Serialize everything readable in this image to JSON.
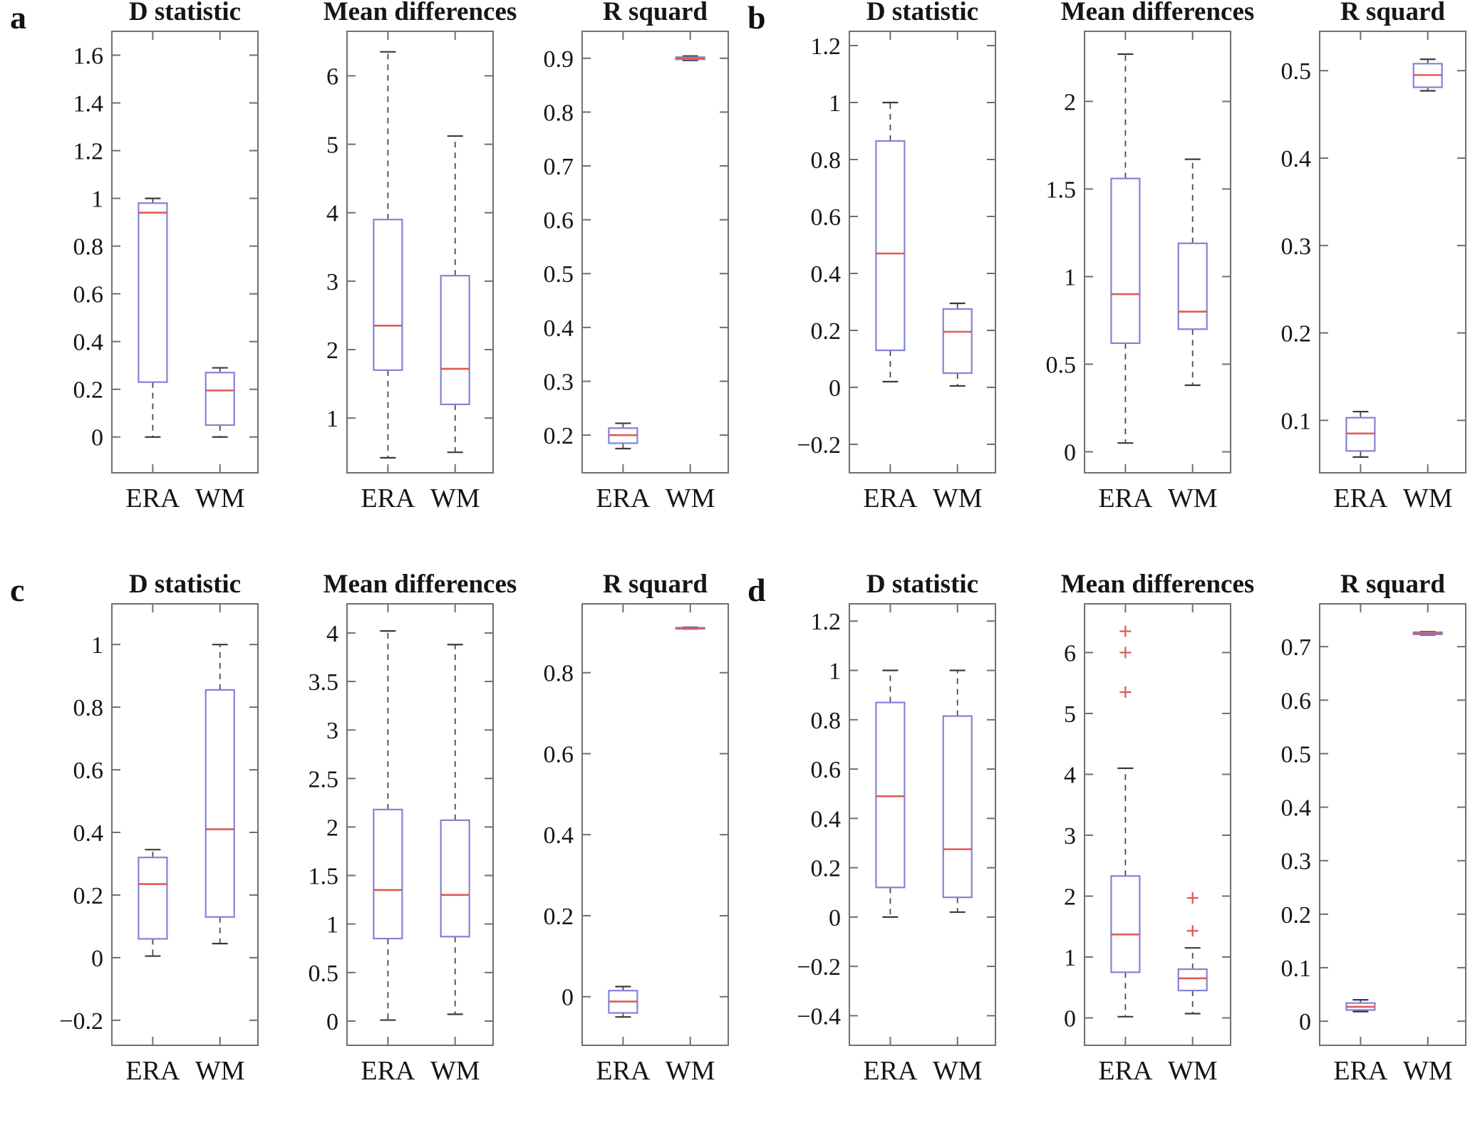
{
  "figure": {
    "background": "#ffffff"
  },
  "colors": {
    "box": "#8282d8",
    "median": "#e05a52",
    "whisker": "#4a4a4a",
    "cap": "#3a3a3a",
    "axis": "#6f6f6f",
    "outlier": "#e0564e",
    "text": "#151515"
  },
  "chart_data": [
    {
      "panel": "a",
      "type": "box",
      "subplots": [
        {
          "title": "D statistic",
          "ylim": [
            -0.15,
            1.7
          ],
          "yticks": [
            0,
            0.2,
            0.4,
            0.6,
            0.8,
            1,
            1.2,
            1.4,
            1.6
          ],
          "ytick_labels": [
            "0",
            "0.2",
            "0.4",
            "0.6",
            "0.8",
            "1",
            "1.2",
            "1.4",
            "1.6"
          ],
          "categories": [
            "ERA",
            "WM"
          ],
          "series": [
            {
              "name": "ERA",
              "whisker_low": 0.0,
              "q1": 0.23,
              "median": 0.94,
              "q3": 0.98,
              "whisker_high": 1.0,
              "outliers": []
            },
            {
              "name": "WM",
              "whisker_low": 0.0,
              "q1": 0.05,
              "median": 0.195,
              "q3": 0.27,
              "whisker_high": 0.29,
              "outliers": []
            }
          ]
        },
        {
          "title": "Mean differences",
          "ylim": [
            0.2,
            6.65
          ],
          "yticks": [
            1,
            2,
            3,
            4,
            5,
            6
          ],
          "ytick_labels": [
            "1",
            "2",
            "3",
            "4",
            "5",
            "6"
          ],
          "categories": [
            "ERA",
            "WM"
          ],
          "series": [
            {
              "name": "ERA",
              "whisker_low": 0.42,
              "q1": 1.7,
              "median": 2.35,
              "q3": 3.9,
              "whisker_high": 6.35,
              "outliers": []
            },
            {
              "name": "WM",
              "whisker_low": 0.5,
              "q1": 1.2,
              "median": 1.72,
              "q3": 3.08,
              "whisker_high": 5.12,
              "outliers": []
            }
          ]
        },
        {
          "title": "R squard",
          "ylim": [
            0.13,
            0.95
          ],
          "yticks": [
            0.2,
            0.3,
            0.4,
            0.5,
            0.6,
            0.7,
            0.8,
            0.9
          ],
          "ytick_labels": [
            "0.2",
            "0.3",
            "0.4",
            "0.5",
            "0.6",
            "0.7",
            "0.8",
            "0.9"
          ],
          "categories": [
            "ERA",
            "WM"
          ],
          "series": [
            {
              "name": "ERA",
              "whisker_low": 0.175,
              "q1": 0.185,
              "median": 0.2,
              "q3": 0.213,
              "whisker_high": 0.222,
              "outliers": []
            },
            {
              "name": "WM",
              "whisker_low": 0.896,
              "q1": 0.898,
              "median": 0.9,
              "q3": 0.902,
              "whisker_high": 0.904,
              "outliers": []
            }
          ]
        }
      ]
    },
    {
      "panel": "b",
      "type": "box",
      "subplots": [
        {
          "title": "D statistic",
          "ylim": [
            -0.3,
            1.25
          ],
          "yticks": [
            -0.2,
            0,
            0.2,
            0.4,
            0.6,
            0.8,
            1,
            1.2
          ],
          "ytick_labels": [
            "−0.2",
            "0",
            "0.2",
            "0.4",
            "0.6",
            "0.8",
            "1",
            "1.2"
          ],
          "categories": [
            "ERA",
            "WM"
          ],
          "series": [
            {
              "name": "ERA",
              "whisker_low": 0.02,
              "q1": 0.13,
              "median": 0.47,
              "q3": 0.865,
              "whisker_high": 1.0,
              "outliers": []
            },
            {
              "name": "WM",
              "whisker_low": 0.005,
              "q1": 0.05,
              "median": 0.195,
              "q3": 0.275,
              "whisker_high": 0.295,
              "outliers": []
            }
          ]
        },
        {
          "title": "Mean differences",
          "ylim": [
            -0.12,
            2.4
          ],
          "yticks": [
            0,
            0.5,
            1,
            1.5,
            2
          ],
          "ytick_labels": [
            "0",
            "0.5",
            "1",
            "1.5",
            "2"
          ],
          "categories": [
            "ERA",
            "WM"
          ],
          "series": [
            {
              "name": "ERA",
              "whisker_low": 0.05,
              "q1": 0.62,
              "median": 0.9,
              "q3": 1.56,
              "whisker_high": 2.27,
              "outliers": []
            },
            {
              "name": "WM",
              "whisker_low": 0.38,
              "q1": 0.7,
              "median": 0.8,
              "q3": 1.19,
              "whisker_high": 1.67,
              "outliers": []
            }
          ]
        },
        {
          "title": "R squard",
          "ylim": [
            0.04,
            0.545
          ],
          "yticks": [
            0.1,
            0.2,
            0.3,
            0.4,
            0.5
          ],
          "ytick_labels": [
            "0.1",
            "0.2",
            "0.3",
            "0.4",
            "0.5"
          ],
          "categories": [
            "ERA",
            "WM"
          ],
          "series": [
            {
              "name": "ERA",
              "whisker_low": 0.058,
              "q1": 0.065,
              "median": 0.085,
              "q3": 0.103,
              "whisker_high": 0.11,
              "outliers": []
            },
            {
              "name": "WM",
              "whisker_low": 0.477,
              "q1": 0.481,
              "median": 0.495,
              "q3": 0.508,
              "whisker_high": 0.513,
              "outliers": []
            }
          ]
        }
      ]
    },
    {
      "panel": "c",
      "type": "box",
      "subplots": [
        {
          "title": "D statistic",
          "ylim": [
            -0.28,
            1.13
          ],
          "yticks": [
            -0.2,
            0,
            0.2,
            0.4,
            0.6,
            0.8,
            1
          ],
          "ytick_labels": [
            "−0.2",
            "0",
            "0.2",
            "0.4",
            "0.6",
            "0.8",
            "1"
          ],
          "categories": [
            "ERA",
            "WM"
          ],
          "series": [
            {
              "name": "ERA",
              "whisker_low": 0.005,
              "q1": 0.06,
              "median": 0.235,
              "q3": 0.32,
              "whisker_high": 0.345,
              "outliers": []
            },
            {
              "name": "WM",
              "whisker_low": 0.045,
              "q1": 0.13,
              "median": 0.41,
              "q3": 0.855,
              "whisker_high": 1.0,
              "outliers": []
            }
          ]
        },
        {
          "title": "Mean differences",
          "ylim": [
            -0.25,
            4.3
          ],
          "yticks": [
            0,
            0.5,
            1,
            1.5,
            2,
            2.5,
            3,
            3.5,
            4
          ],
          "ytick_labels": [
            "0",
            "0.5",
            "1",
            "1.5",
            "2",
            "2.5",
            "3",
            "3.5",
            "4"
          ],
          "categories": [
            "ERA",
            "WM"
          ],
          "series": [
            {
              "name": "ERA",
              "whisker_low": 0.01,
              "q1": 0.85,
              "median": 1.35,
              "q3": 2.18,
              "whisker_high": 4.02,
              "outliers": []
            },
            {
              "name": "WM",
              "whisker_low": 0.07,
              "q1": 0.87,
              "median": 1.3,
              "q3": 2.07,
              "whisker_high": 3.88,
              "outliers": []
            }
          ]
        },
        {
          "title": "R squard",
          "ylim": [
            -0.12,
            0.97
          ],
          "yticks": [
            0,
            0.2,
            0.4,
            0.6,
            0.8
          ],
          "ytick_labels": [
            "0",
            "0.2",
            "0.4",
            "0.6",
            "0.8"
          ],
          "categories": [
            "ERA",
            "WM"
          ],
          "series": [
            {
              "name": "ERA",
              "whisker_low": -0.05,
              "q1": -0.04,
              "median": -0.012,
              "q3": 0.015,
              "whisker_high": 0.025,
              "outliers": []
            },
            {
              "name": "WM",
              "whisker_low": 0.908,
              "q1": 0.909,
              "median": 0.91,
              "q3": 0.911,
              "whisker_high": 0.912,
              "outliers": []
            }
          ]
        }
      ]
    },
    {
      "panel": "d",
      "type": "box",
      "subplots": [
        {
          "title": "D statistic",
          "ylim": [
            -0.52,
            1.27
          ],
          "yticks": [
            -0.4,
            -0.2,
            0,
            0.2,
            0.4,
            0.6,
            0.8,
            1,
            1.2
          ],
          "ytick_labels": [
            "−0.4",
            "−0.2",
            "0",
            "0.2",
            "0.4",
            "0.6",
            "0.8",
            "1",
            "1.2"
          ],
          "categories": [
            "ERA",
            "WM"
          ],
          "series": [
            {
              "name": "ERA",
              "whisker_low": 0.0,
              "q1": 0.12,
              "median": 0.49,
              "q3": 0.87,
              "whisker_high": 1.0,
              "outliers": []
            },
            {
              "name": "WM",
              "whisker_low": 0.02,
              "q1": 0.08,
              "median": 0.275,
              "q3": 0.815,
              "whisker_high": 1.0,
              "outliers": []
            }
          ]
        },
        {
          "title": "Mean differences",
          "ylim": [
            -0.45,
            6.8
          ],
          "yticks": [
            0,
            1,
            2,
            3,
            4,
            5,
            6
          ],
          "ytick_labels": [
            "0",
            "1",
            "2",
            "3",
            "4",
            "5",
            "6"
          ],
          "categories": [
            "ERA",
            "WM"
          ],
          "series": [
            {
              "name": "ERA",
              "whisker_low": 0.02,
              "q1": 0.75,
              "median": 1.37,
              "q3": 2.33,
              "whisker_high": 4.1,
              "outliers": [
                5.35,
                6.0,
                6.35
              ]
            },
            {
              "name": "WM",
              "whisker_low": 0.07,
              "q1": 0.45,
              "median": 0.65,
              "q3": 0.8,
              "whisker_high": 1.15,
              "outliers": [
                1.43,
                1.97
              ]
            }
          ]
        },
        {
          "title": "R squard",
          "ylim": [
            -0.045,
            0.78
          ],
          "yticks": [
            0,
            0.1,
            0.2,
            0.3,
            0.4,
            0.5,
            0.6,
            0.7
          ],
          "ytick_labels": [
            "0",
            "0.1",
            "0.2",
            "0.3",
            "0.4",
            "0.5",
            "0.6",
            "0.7"
          ],
          "categories": [
            "ERA",
            "WM"
          ],
          "series": [
            {
              "name": "ERA",
              "whisker_low": 0.018,
              "q1": 0.021,
              "median": 0.027,
              "q3": 0.034,
              "whisker_high": 0.04,
              "outliers": []
            },
            {
              "name": "WM",
              "whisker_low": 0.722,
              "q1": 0.723,
              "median": 0.725,
              "q3": 0.727,
              "whisker_high": 0.728,
              "outliers": []
            }
          ]
        }
      ]
    }
  ]
}
